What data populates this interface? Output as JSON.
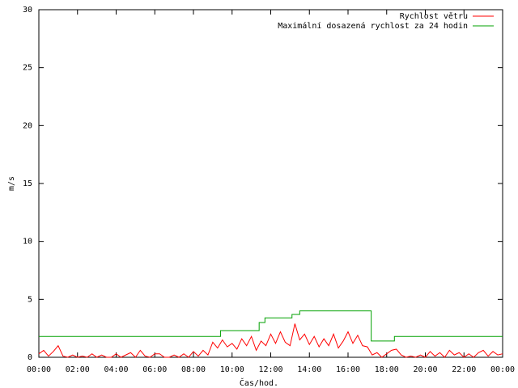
{
  "chart_data": {
    "type": "line",
    "xlabel": "Čas/hod.",
    "ylabel": "m/s",
    "xlim": [
      0,
      24
    ],
    "ylim": [
      0,
      30
    ],
    "xticks": [
      {
        "value": 0,
        "label": "00:00"
      },
      {
        "value": 2,
        "label": "02:00"
      },
      {
        "value": 4,
        "label": "04:00"
      },
      {
        "value": 6,
        "label": "06:00"
      },
      {
        "value": 8,
        "label": "08:00"
      },
      {
        "value": 10,
        "label": "10:00"
      },
      {
        "value": 12,
        "label": "12:00"
      },
      {
        "value": 14,
        "label": "14:00"
      },
      {
        "value": 16,
        "label": "16:00"
      },
      {
        "value": 18,
        "label": "18:00"
      },
      {
        "value": 20,
        "label": "20:00"
      },
      {
        "value": 22,
        "label": "22:00"
      },
      {
        "value": 24,
        "label": "00:00"
      }
    ],
    "yticks": [
      0,
      5,
      10,
      15,
      20,
      25,
      30
    ],
    "grid": false,
    "legend": "upper right",
    "series": [
      {
        "name": "Rychlost větru",
        "color": "#ff0000",
        "x": [
          0,
          0.25,
          0.5,
          0.75,
          1,
          1.25,
          1.5,
          1.75,
          2,
          2.25,
          2.5,
          2.75,
          3,
          3.25,
          3.5,
          3.75,
          4,
          4.25,
          4.5,
          4.75,
          5,
          5.25,
          5.5,
          5.75,
          6,
          6.25,
          6.5,
          6.75,
          7,
          7.25,
          7.5,
          7.75,
          8,
          8.25,
          8.5,
          8.75,
          9,
          9.25,
          9.5,
          9.75,
          10,
          10.25,
          10.5,
          10.75,
          11,
          11.25,
          11.5,
          11.75,
          12,
          12.25,
          12.5,
          12.75,
          13,
          13.25,
          13.5,
          13.75,
          14,
          14.25,
          14.5,
          14.75,
          15,
          15.25,
          15.5,
          15.75,
          16,
          16.25,
          16.5,
          16.75,
          17,
          17.25,
          17.5,
          17.75,
          18,
          18.25,
          18.5,
          18.75,
          19,
          19.25,
          19.5,
          19.75,
          20,
          20.25,
          20.5,
          20.75,
          21,
          21.25,
          21.5,
          21.75,
          22,
          22.25,
          22.5,
          22.75,
          23,
          23.25,
          23.5,
          23.75,
          24
        ],
        "values": [
          0.3,
          0.6,
          0.1,
          0.5,
          1.0,
          0.1,
          0.0,
          0.2,
          0.0,
          0.1,
          0.0,
          0.3,
          0.0,
          0.2,
          0.0,
          0.0,
          0.3,
          0.0,
          0.2,
          0.4,
          0.0,
          0.6,
          0.1,
          0.0,
          0.3,
          0.3,
          0.0,
          0.0,
          0.2,
          0.0,
          0.3,
          0.0,
          0.5,
          0.1,
          0.6,
          0.2,
          1.3,
          0.8,
          1.5,
          0.9,
          1.2,
          0.7,
          1.6,
          1.0,
          1.8,
          0.6,
          1.4,
          1.0,
          2.0,
          1.2,
          2.2,
          1.3,
          1.0,
          2.9,
          1.5,
          2.0,
          1.1,
          1.8,
          0.9,
          1.6,
          1.0,
          2.0,
          0.8,
          1.4,
          2.2,
          1.2,
          1.9,
          1.0,
          0.9,
          0.2,
          0.4,
          0.0,
          0.3,
          0.6,
          0.7,
          0.2,
          0.0,
          0.1,
          0.0,
          0.2,
          0.0,
          0.5,
          0.1,
          0.4,
          0.0,
          0.6,
          0.2,
          0.4,
          0.0,
          0.3,
          0.0,
          0.4,
          0.6,
          0.1,
          0.5,
          0.2,
          0.3
        ]
      },
      {
        "name": "Maximální dosazená rychlost za 24 hodin",
        "color": "#00a000",
        "x": [
          0,
          9.4,
          9.4,
          11.4,
          11.4,
          11.7,
          11.7,
          13.1,
          13.1,
          13.5,
          13.5,
          17.2,
          17.2,
          18.4,
          18.4,
          24
        ],
        "values": [
          1.8,
          1.8,
          2.3,
          2.3,
          3.0,
          3.0,
          3.4,
          3.4,
          3.7,
          3.7,
          4.0,
          4.0,
          1.4,
          1.4,
          1.8,
          1.8
        ]
      }
    ]
  }
}
